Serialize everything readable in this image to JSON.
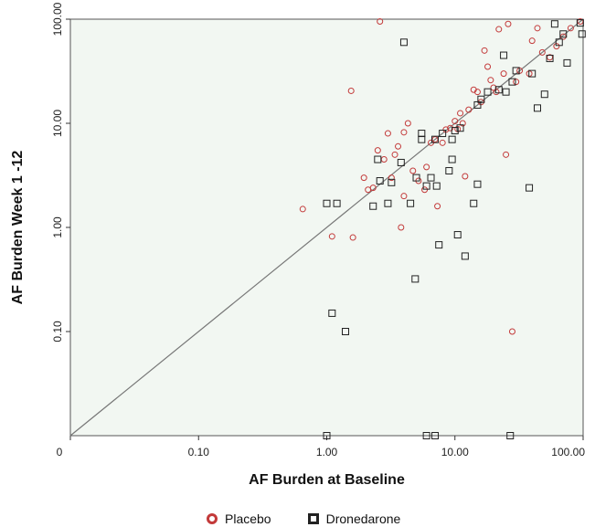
{
  "chart_data": {
    "type": "scatter",
    "xlabel": "AF Burden at Baseline",
    "ylabel": "AF Burden Week 1 -12",
    "x_scale": "log",
    "y_scale": "log",
    "xlim": [
      0.01,
      100
    ],
    "ylim": [
      0.01,
      100
    ],
    "x_ticks": [
      {
        "value": 0.01,
        "label": "0"
      },
      {
        "value": 0.1,
        "label": "0.10"
      },
      {
        "value": 1,
        "label": "1.00"
      },
      {
        "value": 10,
        "label": "10.00"
      },
      {
        "value": 100,
        "label": "100.00"
      }
    ],
    "y_ticks": [
      {
        "value": 0.1,
        "label": "0.10"
      },
      {
        "value": 1,
        "label": "1.00"
      },
      {
        "value": 10,
        "label": "10.00"
      },
      {
        "value": 100,
        "label": "100.00"
      }
    ],
    "diagonal_line": true,
    "background_color": "#f2f7f2",
    "legend_position": "bottom",
    "series": [
      {
        "name": "Placebo",
        "marker": "circle",
        "color": "#c33a3a",
        "points": [
          [
            0.65,
            1.5
          ],
          [
            1.1,
            0.82
          ],
          [
            1.55,
            20.5
          ],
          [
            1.6,
            0.8
          ],
          [
            1.95,
            3.0
          ],
          [
            2.1,
            2.3
          ],
          [
            2.3,
            2.4
          ],
          [
            2.5,
            5.5
          ],
          [
            2.6,
            95
          ],
          [
            2.8,
            4.5
          ],
          [
            3.0,
            8.0
          ],
          [
            3.2,
            3.0
          ],
          [
            3.4,
            5.0
          ],
          [
            3.6,
            6.0
          ],
          [
            3.8,
            1.0
          ],
          [
            4.0,
            2.0
          ],
          [
            4.0,
            8.2
          ],
          [
            4.3,
            10.0
          ],
          [
            4.7,
            3.5
          ],
          [
            5.2,
            2.8
          ],
          [
            5.8,
            2.3
          ],
          [
            6.0,
            3.8
          ],
          [
            6.5,
            6.5
          ],
          [
            7.0,
            7.0
          ],
          [
            7.3,
            1.6
          ],
          [
            8.0,
            6.5
          ],
          [
            8.5,
            8.7
          ],
          [
            9.2,
            9.0
          ],
          [
            10.0,
            10.5
          ],
          [
            10.5,
            8.8
          ],
          [
            11.0,
            12.5
          ],
          [
            11.5,
            10.0
          ],
          [
            12.0,
            3.1
          ],
          [
            12.8,
            13.5
          ],
          [
            14.0,
            21.0
          ],
          [
            15.0,
            20.0
          ],
          [
            16.0,
            16.0
          ],
          [
            17.0,
            50.0
          ],
          [
            18.0,
            35.0
          ],
          [
            19.0,
            26.0
          ],
          [
            20.0,
            22.0
          ],
          [
            21.0,
            20.0
          ],
          [
            22.0,
            80.0
          ],
          [
            24.0,
            30.0
          ],
          [
            25.0,
            5.0
          ],
          [
            26.0,
            90.0
          ],
          [
            28.0,
            0.1
          ],
          [
            30.0,
            25.0
          ],
          [
            32.0,
            32.0
          ],
          [
            38.0,
            30.0
          ],
          [
            40.0,
            62.0
          ],
          [
            44.0,
            82.0
          ],
          [
            48.0,
            48.0
          ],
          [
            55.0,
            43.0
          ],
          [
            62.0,
            55.0
          ],
          [
            70.0,
            68.0
          ],
          [
            80.0,
            82.0
          ],
          [
            95.0,
            95.0
          ]
        ]
      },
      {
        "name": "Dronedarone",
        "marker": "square",
        "color": "#222222",
        "points": [
          [
            1.0,
            0.01
          ],
          [
            1.0,
            1.7
          ],
          [
            1.1,
            0.15
          ],
          [
            1.2,
            1.7
          ],
          [
            1.4,
            0.1
          ],
          [
            2.3,
            1.6
          ],
          [
            2.5,
            4.5
          ],
          [
            2.6,
            2.8
          ],
          [
            3.0,
            1.7
          ],
          [
            3.2,
            2.7
          ],
          [
            3.8,
            4.2
          ],
          [
            4.0,
            60.0
          ],
          [
            4.5,
            1.7
          ],
          [
            4.9,
            0.32
          ],
          [
            5.0,
            3.0
          ],
          [
            5.5,
            7.0
          ],
          [
            5.5,
            8.0
          ],
          [
            6.0,
            0.01
          ],
          [
            6.0,
            2.5
          ],
          [
            6.5,
            3.0
          ],
          [
            7.0,
            0.01
          ],
          [
            7.0,
            7.0
          ],
          [
            7.2,
            2.5
          ],
          [
            7.5,
            0.68
          ],
          [
            8.0,
            8.0
          ],
          [
            9.0,
            3.5
          ],
          [
            9.5,
            4.5
          ],
          [
            9.5,
            7.0
          ],
          [
            10.0,
            8.5
          ],
          [
            10.5,
            0.85
          ],
          [
            11.0,
            9.0
          ],
          [
            12.0,
            0.53
          ],
          [
            14.0,
            1.7
          ],
          [
            15.0,
            2.6
          ],
          [
            15.0,
            15.0
          ],
          [
            16.0,
            17.0
          ],
          [
            18.0,
            20.0
          ],
          [
            22.0,
            21.0
          ],
          [
            24.0,
            45.0
          ],
          [
            25.0,
            20.0
          ],
          [
            27.0,
            0.01
          ],
          [
            28.0,
            25.0
          ],
          [
            30.0,
            32.0
          ],
          [
            38.0,
            2.4
          ],
          [
            40.0,
            30.0
          ],
          [
            44.0,
            14.0
          ],
          [
            50.0,
            19.0
          ],
          [
            55.0,
            42.0
          ],
          [
            60.0,
            90.0
          ],
          [
            65.0,
            60.0
          ],
          [
            70.0,
            72.0
          ],
          [
            75.0,
            38.0
          ],
          [
            95.0,
            92.0
          ],
          [
            98.0,
            72.0
          ]
        ]
      }
    ]
  },
  "legend": {
    "placebo_label": "Placebo",
    "dronedarone_label": "Dronedarone"
  }
}
